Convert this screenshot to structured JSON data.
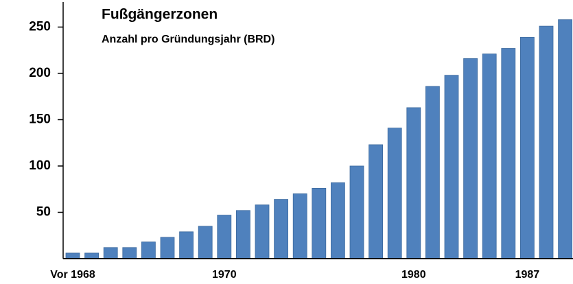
{
  "chart_data": {
    "type": "bar",
    "title": "Fußgängerzonen",
    "subtitle": "Anzahl pro Gründungsjahr (BRD)",
    "categories": [
      "Vor 1968",
      null,
      null,
      null,
      null,
      null,
      null,
      null,
      "1970",
      null,
      null,
      null,
      null,
      null,
      null,
      null,
      null,
      null,
      "1980",
      null,
      null,
      null,
      null,
      null,
      "1987",
      null,
      null
    ],
    "values": [
      6,
      6,
      12,
      12,
      18,
      23,
      29,
      35,
      47,
      52,
      58,
      64,
      70,
      76,
      82,
      100,
      123,
      141,
      163,
      186,
      198,
      216,
      221,
      227,
      239,
      251,
      258
    ],
    "color": "#4f81bd",
    "ylim": [
      0,
      277
    ],
    "yticks": [
      50,
      100,
      150,
      200,
      250
    ],
    "grid": false
  }
}
